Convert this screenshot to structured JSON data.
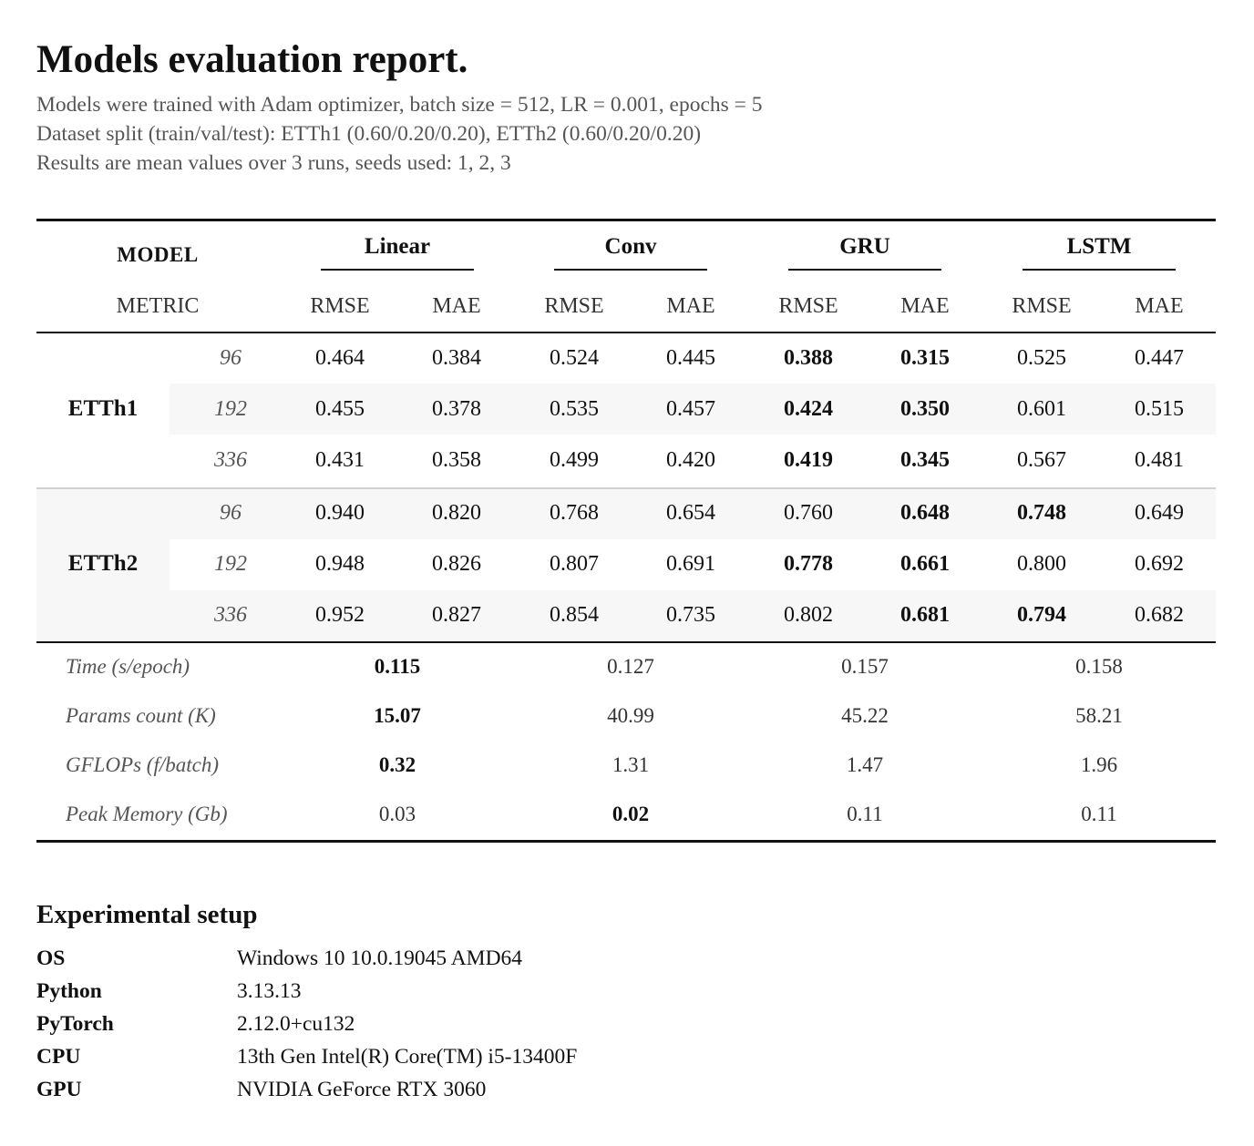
{
  "title": "Models evaluation report.",
  "subtitle_lines": [
    "Models were trained with Adam optimizer, batch size = 512, LR = 0.001, epochs = 5",
    "Dataset split (train/val/test): ETTh1 (0.60/0.20/0.20), ETTh2 (0.60/0.20/0.20)",
    "Results are mean values over 3 runs, seeds used: 1, 2, 3"
  ],
  "table": {
    "model_header": "MODEL",
    "metric_header": "METRIC",
    "models": [
      "Linear",
      "Conv",
      "GRU",
      "LSTM"
    ],
    "metrics": [
      "RMSE",
      "MAE"
    ],
    "datasets": [
      {
        "name": "ETTh1",
        "rows": [
          {
            "horizon": "96",
            "values": [
              "0.464",
              "0.384",
              "0.524",
              "0.445",
              "0.388",
              "0.315",
              "0.525",
              "0.447"
            ],
            "bold": [
              false,
              false,
              false,
              false,
              true,
              true,
              false,
              false
            ]
          },
          {
            "horizon": "192",
            "values": [
              "0.455",
              "0.378",
              "0.535",
              "0.457",
              "0.424",
              "0.350",
              "0.601",
              "0.515"
            ],
            "bold": [
              false,
              false,
              false,
              false,
              true,
              true,
              false,
              false
            ]
          },
          {
            "horizon": "336",
            "values": [
              "0.431",
              "0.358",
              "0.499",
              "0.420",
              "0.419",
              "0.345",
              "0.567",
              "0.481"
            ],
            "bold": [
              false,
              false,
              false,
              false,
              true,
              true,
              false,
              false
            ]
          }
        ]
      },
      {
        "name": "ETTh2",
        "rows": [
          {
            "horizon": "96",
            "values": [
              "0.940",
              "0.820",
              "0.768",
              "0.654",
              "0.760",
              "0.648",
              "0.748",
              "0.649"
            ],
            "bold": [
              false,
              false,
              false,
              false,
              false,
              true,
              true,
              false
            ]
          },
          {
            "horizon": "192",
            "values": [
              "0.948",
              "0.826",
              "0.807",
              "0.691",
              "0.778",
              "0.661",
              "0.800",
              "0.692"
            ],
            "bold": [
              false,
              false,
              false,
              false,
              true,
              true,
              false,
              false
            ]
          },
          {
            "horizon": "336",
            "values": [
              "0.952",
              "0.827",
              "0.854",
              "0.735",
              "0.802",
              "0.681",
              "0.794",
              "0.682"
            ],
            "bold": [
              false,
              false,
              false,
              false,
              false,
              true,
              true,
              false
            ]
          }
        ]
      }
    ],
    "performance": [
      {
        "label": "Time (s/epoch)",
        "values": [
          "0.115",
          "0.127",
          "0.157",
          "0.158"
        ],
        "bold": [
          true,
          false,
          false,
          false
        ]
      },
      {
        "label": "Params count (K)",
        "values": [
          "15.07",
          "40.99",
          "45.22",
          "58.21"
        ],
        "bold": [
          true,
          false,
          false,
          false
        ]
      },
      {
        "label": "GFLOPs (f/batch)",
        "values": [
          "0.32",
          "1.31",
          "1.47",
          "1.96"
        ],
        "bold": [
          true,
          false,
          false,
          false
        ]
      },
      {
        "label": "Peak Memory (Gb)",
        "values": [
          "0.03",
          "0.02",
          "0.11",
          "0.11"
        ],
        "bold": [
          false,
          true,
          false,
          false
        ]
      }
    ]
  },
  "setup": {
    "title": "Experimental setup",
    "items": [
      {
        "key": "OS",
        "value": "Windows 10 10.0.19045 AMD64"
      },
      {
        "key": "Python",
        "value": "3.13.13"
      },
      {
        "key": "PyTorch",
        "value": "2.12.0+cu132"
      },
      {
        "key": "CPU",
        "value": "13th Gen Intel(R) Core(TM) i5-13400F"
      },
      {
        "key": "GPU",
        "value": "NVIDIA GeForce RTX 3060"
      }
    ]
  }
}
